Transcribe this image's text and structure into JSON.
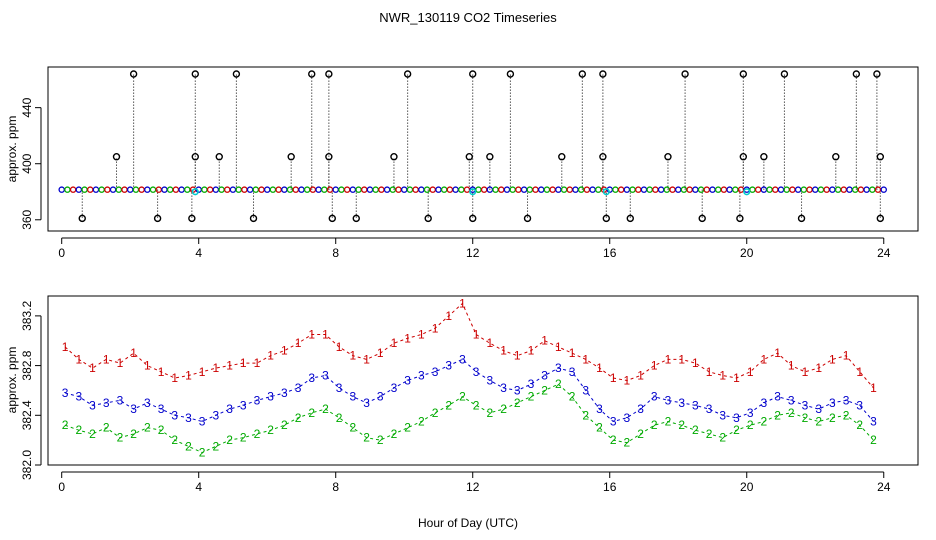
{
  "chart_data": [
    {
      "type": "scatter",
      "title": "NWR_130119  CO2 Timeseries",
      "ylabel": "approx. ppm",
      "xlim": [
        -0.4,
        25.0
      ],
      "ylim": [
        352,
        469
      ],
      "xticks": [
        "0",
        "4",
        "8",
        "12",
        "16",
        "20",
        "24"
      ],
      "xtick_values": [
        0,
        4,
        8,
        12,
        16,
        20,
        24
      ],
      "yticks": [
        "360",
        "400",
        "440"
      ],
      "ytick_values": [
        360,
        400,
        440
      ],
      "baseline": 381.5,
      "baseline_colors": [
        "#0000cc",
        "#00aa00",
        "#cc0000"
      ],
      "baseline_points_per_hour": 6,
      "highlight_color": "#00cccc",
      "highlight_x": [
        3.9,
        12.0,
        15.9,
        20.0
      ],
      "outliers_high": {
        "value": 464,
        "x": [
          2.1,
          3.9,
          5.1,
          7.3,
          7.8,
          10.1,
          12.0,
          13.1,
          15.2,
          15.8,
          18.2,
          19.9,
          21.1,
          23.2,
          23.8
        ]
      },
      "outliers_mid": {
        "value": 405,
        "x": [
          1.6,
          3.9,
          4.6,
          6.7,
          7.8,
          9.7,
          11.9,
          12.5,
          14.6,
          15.8,
          17.7,
          19.9,
          20.5,
          22.6,
          23.9
        ]
      },
      "outliers_low": {
        "value": 361,
        "x": [
          0.6,
          2.8,
          3.8,
          5.6,
          7.9,
          8.6,
          10.7,
          12.0,
          13.6,
          15.9,
          16.6,
          18.7,
          19.8,
          21.6,
          23.9
        ]
      },
      "point_marker": "o"
    },
    {
      "type": "line",
      "ylabel": "approx. ppm",
      "xlabel": "Hour of Day (UTC)",
      "xlim": [
        -0.4,
        25.0
      ],
      "ylim": [
        382.0,
        383.36
      ],
      "xticks": [
        "0",
        "4",
        "8",
        "12",
        "16",
        "20",
        "24"
      ],
      "xtick_values": [
        0,
        4,
        8,
        12,
        16,
        20,
        24
      ],
      "yticks": [
        "382.0",
        "382.4",
        "382.8",
        "383.2"
      ],
      "ytick_values": [
        382.0,
        382.4,
        382.8,
        383.2
      ],
      "x": [
        0.1,
        0.5,
        0.9,
        1.3,
        1.7,
        2.1,
        2.5,
        2.9,
        3.3,
        3.7,
        4.1,
        4.5,
        4.9,
        5.3,
        5.7,
        6.1,
        6.5,
        6.9,
        7.3,
        7.7,
        8.1,
        8.5,
        8.9,
        9.3,
        9.7,
        10.1,
        10.5,
        10.9,
        11.3,
        11.7,
        12.1,
        12.5,
        12.9,
        13.3,
        13.7,
        14.1,
        14.5,
        14.9,
        15.3,
        15.7,
        16.1,
        16.5,
        16.9,
        17.3,
        17.7,
        18.1,
        18.5,
        18.9,
        19.3,
        19.7,
        20.1,
        20.5,
        20.9,
        21.3,
        21.7,
        22.1,
        22.5,
        22.9,
        23.3,
        23.7
      ],
      "series": [
        {
          "name": "1",
          "color": "#cc0000",
          "values": [
            382.95,
            382.85,
            382.78,
            382.85,
            382.82,
            382.9,
            382.8,
            382.75,
            382.7,
            382.72,
            382.75,
            382.78,
            382.8,
            382.82,
            382.82,
            382.88,
            382.92,
            382.98,
            383.05,
            383.05,
            382.95,
            382.88,
            382.85,
            382.9,
            382.98,
            383.02,
            383.05,
            383.1,
            383.2,
            383.3,
            383.05,
            382.98,
            382.92,
            382.88,
            382.92,
            383.0,
            382.95,
            382.9,
            382.85,
            382.78,
            382.7,
            382.68,
            382.72,
            382.8,
            382.85,
            382.85,
            382.82,
            382.75,
            382.72,
            382.7,
            382.75,
            382.85,
            382.9,
            382.8,
            382.75,
            382.78,
            382.85,
            382.88,
            382.75,
            382.62
          ]
        },
        {
          "name": "3",
          "color": "#0000cc",
          "values": [
            382.58,
            382.55,
            382.48,
            382.5,
            382.52,
            382.45,
            382.5,
            382.45,
            382.4,
            382.38,
            382.35,
            382.4,
            382.45,
            382.48,
            382.52,
            382.55,
            382.58,
            382.62,
            382.7,
            382.72,
            382.62,
            382.55,
            382.5,
            382.55,
            382.62,
            382.68,
            382.72,
            382.75,
            382.8,
            382.85,
            382.75,
            382.68,
            382.62,
            382.6,
            382.65,
            382.72,
            382.78,
            382.75,
            382.6,
            382.45,
            382.35,
            382.38,
            382.45,
            382.55,
            382.52,
            382.5,
            382.48,
            382.45,
            382.4,
            382.38,
            382.42,
            382.5,
            382.55,
            382.52,
            382.48,
            382.45,
            382.5,
            382.52,
            382.48,
            382.35
          ]
        },
        {
          "name": "2",
          "color": "#00aa00",
          "values": [
            382.32,
            382.28,
            382.25,
            382.3,
            382.22,
            382.25,
            382.3,
            382.28,
            382.2,
            382.15,
            382.1,
            382.15,
            382.2,
            382.22,
            382.25,
            382.28,
            382.32,
            382.38,
            382.42,
            382.45,
            382.38,
            382.3,
            382.22,
            382.2,
            382.25,
            382.3,
            382.35,
            382.42,
            382.48,
            382.55,
            382.48,
            382.42,
            382.45,
            382.5,
            382.55,
            382.6,
            382.65,
            382.55,
            382.4,
            382.3,
            382.2,
            382.18,
            382.25,
            382.32,
            382.35,
            382.32,
            382.28,
            382.25,
            382.22,
            382.28,
            382.32,
            382.35,
            382.4,
            382.42,
            382.38,
            382.35,
            382.38,
            382.4,
            382.32,
            382.2
          ]
        }
      ]
    }
  ]
}
